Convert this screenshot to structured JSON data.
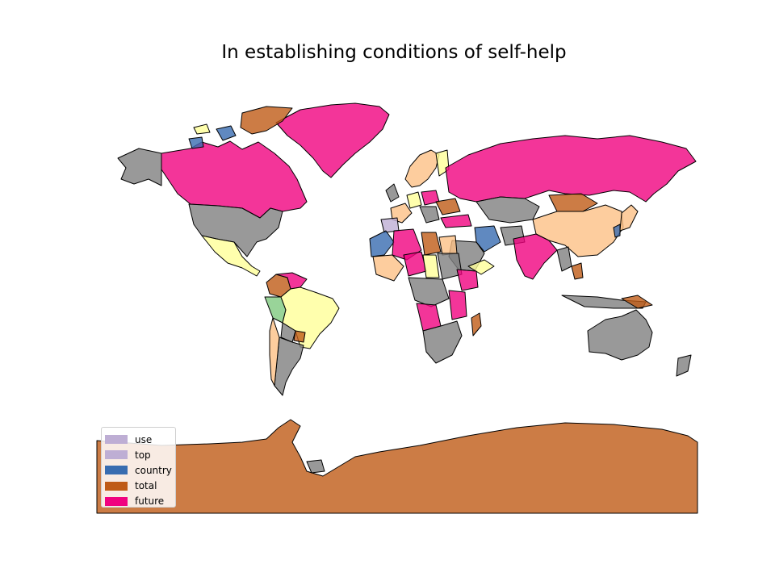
{
  "title": "In establishing conditions of self-help",
  "legend": [
    {
      "label": "use",
      "color": "#beaed4"
    },
    {
      "label": "top",
      "color": "#beaed4"
    },
    {
      "label": "country",
      "color": "#386cb0"
    },
    {
      "label": "total",
      "color": "#bf5b17"
    },
    {
      "label": "future",
      "color": "#f0027f"
    }
  ],
  "palette": {
    "no_data": "#808080",
    "peach": "#fdc086",
    "yellow": "#ffff99",
    "green": "#7fc97f",
    "pink": "#f0027f",
    "blue": "#386cb0",
    "orange": "#bf5b17",
    "purple": "#beaed4"
  }
}
